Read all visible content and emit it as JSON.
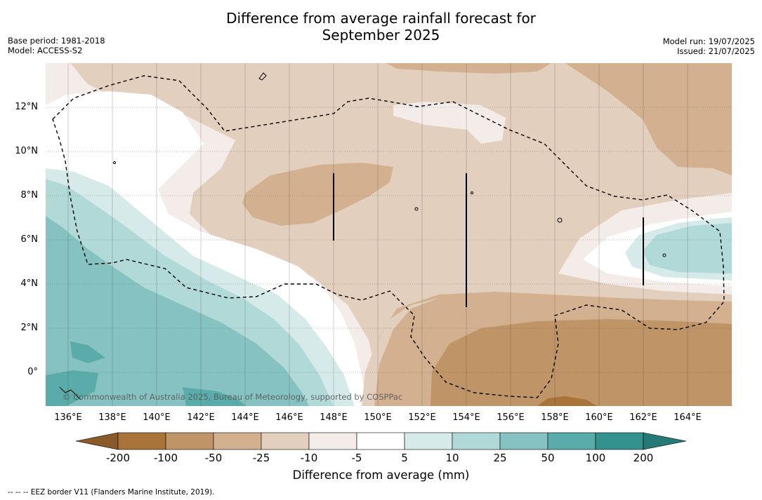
{
  "title": {
    "line1": "Difference from average rainfall forecast for",
    "line2": "September 2025"
  },
  "meta_left": {
    "base_period": "Base period: 1981-2018",
    "model": "Model: ACCESS-S2"
  },
  "meta_right": {
    "model_run": "Model run: 19/07/2025",
    "issued": "Issued: 21/07/2025"
  },
  "map": {
    "lat_labels": [
      "12°N",
      "10°N",
      "8°N",
      "6°N",
      "4°N",
      "2°N",
      "0°"
    ],
    "lon_labels": [
      "136°E",
      "138°E",
      "140°E",
      "142°E",
      "144°E",
      "146°E",
      "148°E",
      "150°E",
      "152°E",
      "154°E",
      "156°E",
      "158°E",
      "160°E",
      "162°E",
      "164°E"
    ],
    "copyright": "© Commonwealth of Australia 2025, Bureau of Meteorology, supported by COSPPac",
    "colors": {
      "neg_200": "#a87439",
      "neg_100": "#bf9466",
      "neg_50": "#d3b08f",
      "neg_25": "#e3cfbe",
      "neg_10": "#f4ece8",
      "neutral": "#ffffff",
      "pos_5": "#d6eae9",
      "pos_10": "#b0d9d8",
      "pos_25": "#86c2c1",
      "pos_50": "#5aacaa",
      "pos_100": "#33918e",
      "pos_200": "#257a77"
    }
  },
  "colorbar": {
    "ticks": [
      "-200",
      "-100",
      "-50",
      "-25",
      "-10",
      "-5",
      "5",
      "10",
      "25",
      "50",
      "100",
      "200"
    ],
    "title": "Difference from average (mm)"
  },
  "footnote": "--  --  -- EEZ border V11 (Flanders Marine Institute, 2019)."
}
